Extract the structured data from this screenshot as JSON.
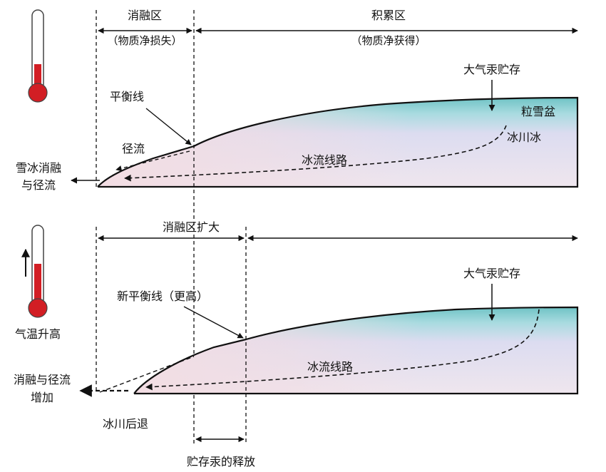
{
  "top": {
    "ablation_zone": "消融区",
    "ablation_sub": "（物质净损失）",
    "accumulation_zone": "积累区",
    "accumulation_sub": "（物质净获得）",
    "atmospheric_input": "大气汞贮存",
    "firn_basin": "粒雪盆",
    "glacier_ice": "冰川冰",
    "flow_path": "冰流线路",
    "equilibrium_line": "平衡线",
    "runoff": "径流",
    "melt_runoff_line1": "雪冰消融",
    "melt_runoff_line2": "与径流"
  },
  "bottom": {
    "ablation_expanded": "消融区扩大",
    "new_equilibrium_line": "新平衡线（更高）",
    "atmospheric_input": "大气汞贮存",
    "flow_path": "冰流线路",
    "temperature_rise": "气温升高",
    "melt_runoff_line1": "消融与径流",
    "melt_runoff_line2": "增加",
    "glacier_retreat": "冰川后退",
    "mercury_release": "贮存汞的释放"
  },
  "colors": {
    "thermometer_red": "#d21e24",
    "ice_teal": "#6fc3c5",
    "ice_lavender": "#dcdcf0",
    "ice_pink": "#f2dde3"
  }
}
